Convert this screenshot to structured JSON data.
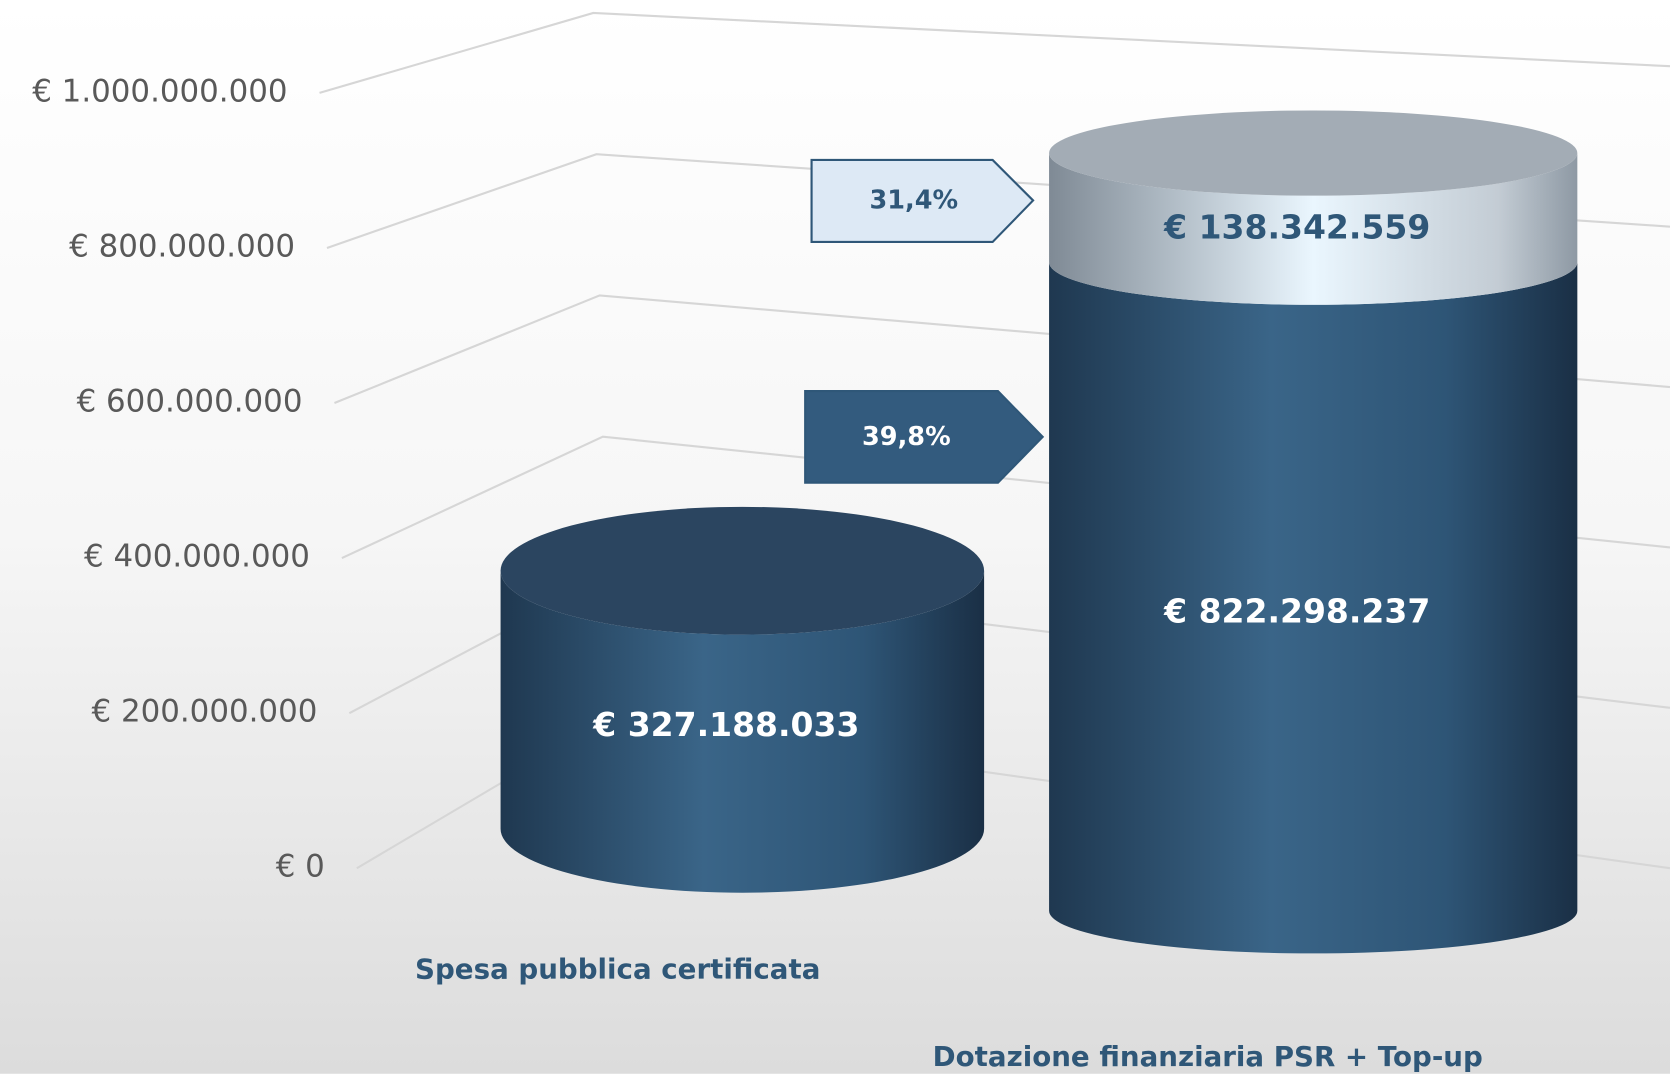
{
  "chart_data": {
    "type": "cylinder-stacked",
    "categories": [
      "Spesa pubblica certificata",
      "Dotazione finanziaria PSR + Top-up"
    ],
    "series": [
      {
        "color": "#2f5778",
        "values": [
          327188033,
          822298237
        ],
        "value_labels": [
          "€ 327.188.033",
          "€ 822.298.237"
        ]
      },
      {
        "color": "#c9d6e0",
        "values": [
          null,
          138342559
        ],
        "value_labels": [
          null,
          "€ 138.342.559"
        ]
      }
    ],
    "ylim": [
      0,
      1000000000
    ],
    "yticks": [
      {
        "value": 0,
        "label": "€ 0"
      },
      {
        "value": 200000000,
        "label": "€ 200.000.000"
      },
      {
        "value": 400000000,
        "label": "€ 400.000.000"
      },
      {
        "value": 600000000,
        "label": "€ 600.000.000"
      },
      {
        "value": 800000000,
        "label": "€ 800.000.000"
      },
      {
        "value": 1000000000,
        "label": "€ 1.000.000.000"
      }
    ],
    "annotations": [
      "31,4%",
      "39,8%"
    ],
    "grid": true
  }
}
